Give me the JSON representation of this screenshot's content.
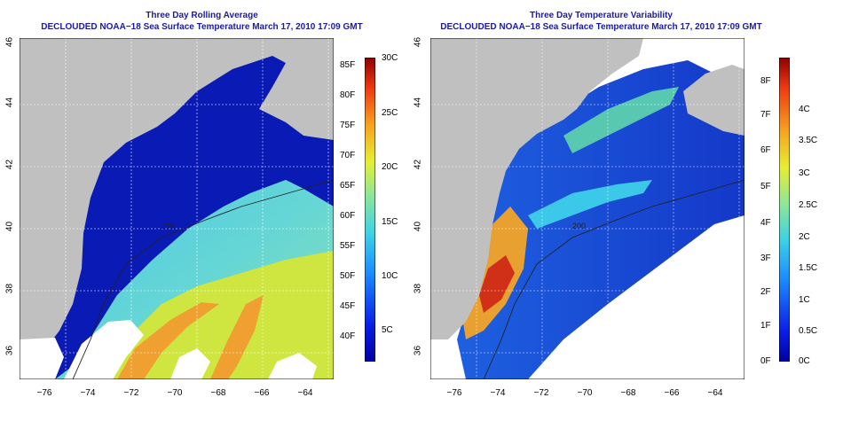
{
  "panels": [
    {
      "title_line1": "Three Day Rolling Average",
      "title_line2": "DECLOUDED NOAA−18 Sea Surface Temperature March 17, 2010 17:09 GMT",
      "x_ticks": [
        "−76",
        "−74",
        "−72",
        "−70",
        "−68",
        "−66",
        "−64"
      ],
      "y_ticks": [
        "36",
        "38",
        "40",
        "42",
        "44",
        "46"
      ],
      "colorbar_left_labels": [
        "85F",
        "80F",
        "75F",
        "70F",
        "65F",
        "60F",
        "55F",
        "50F",
        "45F",
        "40F"
      ],
      "colorbar_right_labels": [
        "30C",
        "25C",
        "20C",
        "15C",
        "10C",
        "5C"
      ],
      "contour_label": "200"
    },
    {
      "title_line1": "Three Day Temperature Variability",
      "title_line2": "DECLOUDED NOAA−18 Sea Surface Temperature March 17, 2010 17:09 GMT",
      "x_ticks": [
        "−76",
        "−74",
        "−72",
        "−70",
        "−68",
        "−66",
        "−64"
      ],
      "y_ticks": [
        "36",
        "38",
        "40",
        "42",
        "44",
        "46"
      ],
      "colorbar_left_labels": [
        "8F",
        "7F",
        "6F",
        "5F",
        "4F",
        "3F",
        "2F",
        "1F",
        "0F"
      ],
      "colorbar_right_labels": [
        "4C",
        "3.5C",
        "3C",
        "2.5C",
        "2C",
        "1.5C",
        "1C",
        "0.5C",
        "0C"
      ],
      "contour_label": "200"
    }
  ],
  "colors": {
    "land": "#c0c0c0",
    "title": "#1a1aa6",
    "cold": "#0a1ab4",
    "warm_sst": "#d8e832",
    "high_var": "#c81818"
  }
}
